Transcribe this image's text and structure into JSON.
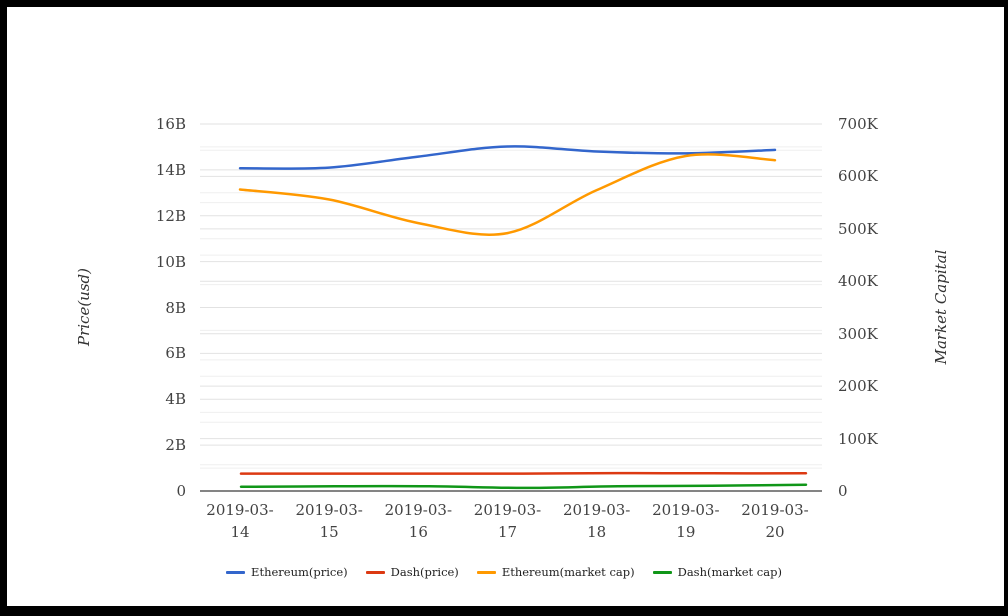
{
  "colors": {
    "background": "#ffffff",
    "frame": "#000000",
    "gridline_major": "#e2e2e2",
    "gridline_minor": "#efefef",
    "baseline": "#3a3a3a",
    "tick_text": "#424242"
  },
  "chart_data": {
    "type": "line",
    "curve": "smooth",
    "grid": true,
    "legend_position": "bottom",
    "categories": [
      "2019-03-14",
      "2019-03-15",
      "2019-03-16",
      "2019-03-17",
      "2019-03-18",
      "2019-03-19",
      "2019-03-20"
    ],
    "left_axis": {
      "label": "Price(usd)",
      "ticks": [
        "0",
        "2B",
        "4B",
        "6B",
        "8B",
        "10B",
        "12B",
        "14B",
        "16B"
      ],
      "min": 0,
      "max_billions": 16
    },
    "right_axis": {
      "label": "Market Capital",
      "ticks": [
        "0",
        "100K",
        "200K",
        "300K",
        "400K",
        "500K",
        "600K",
        "700K"
      ],
      "min": 0,
      "max_thousands": 700
    },
    "series": [
      {
        "name": "Ethereum(price)",
        "axis": "left",
        "color": "#3366cc",
        "unit": "billions",
        "values": [
          14.07,
          14.1,
          14.58,
          15.02,
          14.8,
          14.72,
          14.87
        ]
      },
      {
        "name": "Dash(price)",
        "axis": "left",
        "color": "#dc3912",
        "unit": "billions",
        "values": [
          0.76,
          0.76,
          0.76,
          0.76,
          0.78,
          0.77,
          0.77
        ]
      },
      {
        "name": "Ethereum(market cap)",
        "axis": "right",
        "color": "#ff9900",
        "unit": "thousands",
        "values": [
          575,
          556,
          511,
          492,
          574,
          639,
          631
        ]
      },
      {
        "name": "Dash(market cap)",
        "axis": "right",
        "color": "#109618",
        "unit": "thousands",
        "values": [
          8,
          9,
          9,
          6,
          9,
          10,
          12
        ]
      }
    ]
  }
}
